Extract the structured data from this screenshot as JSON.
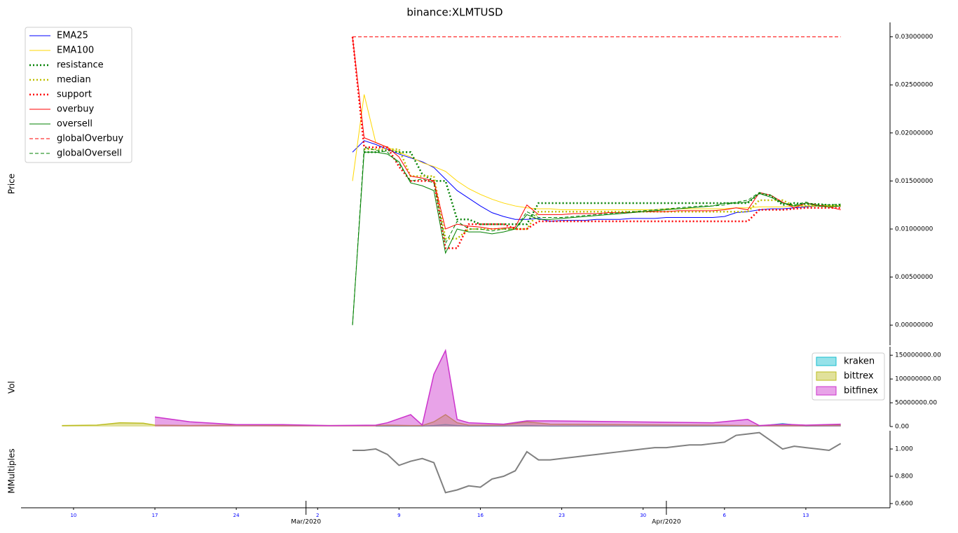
{
  "chart_data": [
    {
      "type": "line",
      "title": "binance:XLMTUSD",
      "ylabel": "Price",
      "legend": "upper left",
      "x": [
        "2020-03-05",
        "2020-03-06",
        "2020-03-07",
        "2020-03-08",
        "2020-03-09",
        "2020-03-10",
        "2020-03-11",
        "2020-03-12",
        "2020-03-13",
        "2020-03-14",
        "2020-03-15",
        "2020-03-16",
        "2020-03-17",
        "2020-03-18",
        "2020-03-19",
        "2020-03-20",
        "2020-03-21",
        "2020-03-22",
        "2020-03-23",
        "2020-03-24",
        "2020-03-25",
        "2020-03-26",
        "2020-03-27",
        "2020-03-28",
        "2020-03-29",
        "2020-03-30",
        "2020-03-31",
        "2020-04-01",
        "2020-04-02",
        "2020-04-03",
        "2020-04-04",
        "2020-04-05",
        "2020-04-06",
        "2020-04-07",
        "2020-04-08",
        "2020-04-09",
        "2020-04-10",
        "2020-04-11",
        "2020-04-12",
        "2020-04-13",
        "2020-04-14",
        "2020-04-15",
        "2020-04-16"
      ],
      "xlim": [
        "2020-02-05",
        "2020-04-20"
      ],
      "ylim": [
        -0.0021,
        0.0315
      ],
      "yticks": [
        {
          "value": 0,
          "label": "0.00000000"
        },
        {
          "value": 0.005,
          "label": "0.00500000"
        },
        {
          "value": 0.01,
          "label": "0.01000000"
        },
        {
          "value": 0.015,
          "label": "0.01500000"
        },
        {
          "value": 0.02,
          "label": "0.02000000"
        },
        {
          "value": 0.025,
          "label": "0.02500000"
        },
        {
          "value": 0.03,
          "label": "0.03000000"
        }
      ],
      "series": [
        {
          "name": "EMA25",
          "color": "#0000ff",
          "style": "solid",
          "values": [
            0.018,
            0.0192,
            0.0188,
            0.0183,
            0.0178,
            0.0174,
            0.017,
            0.0164,
            0.0152,
            0.014,
            0.0132,
            0.0124,
            0.0117,
            0.0113,
            0.011,
            0.011,
            0.0111,
            0.0108,
            0.0109,
            0.0109,
            0.0109,
            0.011,
            0.011,
            0.011,
            0.0111,
            0.0111,
            0.0111,
            0.0112,
            0.0112,
            0.0112,
            0.0112,
            0.0112,
            0.0113,
            0.0117,
            0.0118,
            0.012,
            0.0121,
            0.0121,
            0.0122,
            0.0123,
            0.0124,
            0.0124,
            0.0124
          ]
        },
        {
          "name": "EMA100",
          "color": "#ffd700",
          "style": "solid",
          "values": [
            0.015,
            0.024,
            0.019,
            0.0185,
            0.018,
            0.0175,
            0.0169,
            0.0165,
            0.016,
            0.015,
            0.0142,
            0.0136,
            0.0131,
            0.0127,
            0.0124,
            0.0122,
            0.0121,
            0.0121,
            0.012,
            0.012,
            0.012,
            0.012,
            0.012,
            0.012,
            0.012,
            0.012,
            0.012,
            0.0121,
            0.0121,
            0.0121,
            0.0121,
            0.0121,
            0.0121,
            0.0122,
            0.0122,
            0.0123,
            0.0123,
            0.0123,
            0.0124,
            0.0124,
            0.0124,
            0.0124,
            0.0124
          ]
        },
        {
          "name": "resistance",
          "color": "#008000",
          "style": "dotted",
          "values": [
            null,
            0.018,
            0.018,
            0.0182,
            0.018,
            0.018,
            0.0157,
            0.015,
            0.015,
            0.011,
            0.011,
            0.0105,
            0.0105,
            0.0105,
            0.0105,
            0.0105,
            0.0127,
            0.0127,
            0.0127,
            0.0127,
            0.0127,
            0.0127,
            0.0127,
            0.0127,
            0.0127,
            0.0127,
            0.0127,
            0.0127,
            0.0127,
            0.0127,
            0.0127,
            0.0127,
            0.0127,
            0.0127,
            0.0127,
            0.0137,
            0.0135,
            0.0125,
            0.0127,
            0.0126,
            0.0126,
            0.0125,
            0.0125
          ]
        },
        {
          "name": "median",
          "color": "#bfbf00",
          "style": "dotted",
          "values": [
            null,
            0.0183,
            0.0183,
            0.0183,
            0.0183,
            0.0155,
            0.0155,
            0.0155,
            0.009,
            0.009,
            0.01,
            0.01,
            0.01,
            0.01,
            0.01,
            0.01,
            0.0118,
            0.0118,
            0.0118,
            0.0118,
            0.0118,
            0.0118,
            0.0118,
            0.0118,
            0.0118,
            0.0118,
            0.0118,
            0.0118,
            0.0118,
            0.0118,
            0.0118,
            0.0118,
            0.0118,
            0.0118,
            0.0118,
            0.013,
            0.013,
            0.013,
            0.0124,
            0.0124,
            0.0124,
            0.0124,
            0.0124
          ]
        },
        {
          "name": "support",
          "color": "#ff0000",
          "style": "dotted",
          "values": [
            0.03,
            0.0185,
            0.0185,
            0.0185,
            0.0165,
            0.015,
            0.015,
            0.015,
            0.008,
            0.008,
            0.0105,
            0.0105,
            0.0105,
            0.0105,
            0.01,
            0.01,
            0.0108,
            0.0108,
            0.0108,
            0.0108,
            0.0108,
            0.0108,
            0.0108,
            0.0108,
            0.0108,
            0.0108,
            0.0108,
            0.0108,
            0.0108,
            0.0108,
            0.0108,
            0.0108,
            0.0108,
            0.0108,
            0.0108,
            0.012,
            0.012,
            0.012,
            0.0121,
            0.0122,
            0.0122,
            0.0122,
            0.0122
          ]
        },
        {
          "name": "overbuy",
          "color": "#ff0000",
          "style": "solid",
          "values": [
            0.03,
            0.0195,
            0.019,
            0.0185,
            0.0175,
            0.0155,
            0.0153,
            0.015,
            0.01,
            0.0105,
            0.0103,
            0.0102,
            0.01,
            0.0101,
            0.0102,
            0.0125,
            0.0115,
            0.0115,
            0.0115,
            0.0116,
            0.0116,
            0.0116,
            0.0117,
            0.0117,
            0.0117,
            0.0118,
            0.0118,
            0.0118,
            0.0119,
            0.0119,
            0.0119,
            0.0119,
            0.012,
            0.0122,
            0.012,
            0.0138,
            0.0135,
            0.0128,
            0.0122,
            0.0127,
            0.0125,
            0.0123,
            0.012
          ]
        },
        {
          "name": "oversell",
          "color": "#008000",
          "style": "solid",
          "values": [
            0.0,
            0.018,
            0.018,
            0.0178,
            0.017,
            0.0148,
            0.0145,
            0.014,
            0.0075,
            0.01,
            0.0097,
            0.0097,
            0.0095,
            0.0097,
            0.01,
            0.0115,
            0.011,
            0.011,
            0.0111,
            0.0112,
            0.0113,
            0.0114,
            0.0115,
            0.0116,
            0.0117,
            0.0118,
            0.0119,
            0.012,
            0.0121,
            0.0122,
            0.0123,
            0.0124,
            0.0127,
            0.0127,
            0.0128,
            0.0137,
            0.0133,
            0.0127,
            0.0124,
            0.0127,
            0.0124,
            0.0123,
            0.0124
          ]
        },
        {
          "name": "globalOverbuy",
          "color": "#ff0000",
          "style": "dashed",
          "values": [
            0.03,
            0.03,
            0.03,
            0.03,
            0.03,
            0.03,
            0.03,
            0.03,
            0.03,
            0.03,
            0.03,
            0.03,
            0.03,
            0.03,
            0.03,
            0.03,
            0.03,
            0.03,
            0.03,
            0.03,
            0.03,
            0.03,
            0.03,
            0.03,
            0.03,
            0.03,
            0.03,
            0.03,
            0.03,
            0.03,
            0.03,
            0.03,
            0.03,
            0.03,
            0.03,
            0.03,
            0.03,
            0.03,
            0.03,
            0.03,
            0.03,
            0.03,
            0.03
          ]
        },
        {
          "name": "globalOversell",
          "color": "#008000",
          "style": "dashed",
          "values": [
            0.0,
            0.0185,
            0.0182,
            0.018,
            0.0168,
            0.015,
            0.0152,
            0.0148,
            0.0085,
            0.0108,
            0.01,
            0.01,
            0.0098,
            0.01,
            0.01,
            0.0118,
            0.0112,
            0.0112,
            0.0112,
            0.0113,
            0.0114,
            0.0115,
            0.0116,
            0.0117,
            0.0118,
            0.0119,
            0.012,
            0.0121,
            0.0122,
            0.0123,
            0.0124,
            0.0124,
            0.0125,
            0.0128,
            0.013,
            0.0138,
            0.0135,
            0.0127,
            0.0125,
            0.0128,
            0.0125,
            0.0125,
            0.0126
          ]
        }
      ]
    },
    {
      "type": "area",
      "ylabel": "Vol",
      "legend": "upper right",
      "x": [
        "2020-02-09",
        "2020-02-12",
        "2020-02-14",
        "2020-02-16",
        "2020-02-17",
        "2020-02-20",
        "2020-02-24",
        "2020-02-28",
        "2020-03-03",
        "2020-03-07",
        "2020-03-08",
        "2020-03-10",
        "2020-03-11",
        "2020-03-12",
        "2020-03-13",
        "2020-03-14",
        "2020-03-15",
        "2020-03-18",
        "2020-03-20",
        "2020-03-22",
        "2020-04-05",
        "2020-04-08",
        "2020-04-09",
        "2020-04-11",
        "2020-04-13",
        "2020-04-16"
      ],
      "xlim": [
        "2020-02-05",
        "2020-04-20"
      ],
      "ylim": [
        0,
        165000000
      ],
      "yticks": [
        {
          "value": 0,
          "label": "0.00"
        },
        {
          "value": 50000000,
          "label": "50000000.00"
        },
        {
          "value": 100000000,
          "label": "100000000.00"
        },
        {
          "value": 150000000,
          "label": "150000000.00"
        }
      ],
      "series": [
        {
          "name": "kraken",
          "color": "#17becf",
          "values": [
            null,
            null,
            null,
            null,
            null,
            null,
            null,
            null,
            null,
            1000000,
            1000000,
            1000000,
            1000000,
            2000000,
            4000000,
            2000000,
            1000000,
            1000000,
            2000000,
            1000000,
            1000000,
            1000000,
            1000000,
            6000000,
            1000000,
            2000000
          ]
        },
        {
          "name": "bittrex",
          "color": "#bcbd22",
          "values": [
            2000000,
            3000000,
            8000000,
            7000000,
            3000000,
            2000000,
            3000000,
            2000000,
            2000000,
            2000000,
            3000000,
            2000000,
            2000000,
            10000000,
            25000000,
            8000000,
            3000000,
            3000000,
            10000000,
            5000000,
            3000000,
            2000000,
            2000000,
            2000000,
            2000000,
            3000000
          ]
        },
        {
          "name": "bitfinex",
          "color": "#cc33cc",
          "values": [
            null,
            null,
            null,
            null,
            20000000,
            10000000,
            4000000,
            4000000,
            2000000,
            3000000,
            8000000,
            25000000,
            3000000,
            110000000,
            160000000,
            15000000,
            8000000,
            5000000,
            12000000,
            12000000,
            8000000,
            15000000,
            2000000,
            5000000,
            3000000,
            5000000
          ]
        }
      ]
    },
    {
      "type": "line",
      "ylabel": "MMultiples",
      "x": [
        "2020-03-05",
        "2020-03-06",
        "2020-03-07",
        "2020-03-08",
        "2020-03-09",
        "2020-03-10",
        "2020-03-11",
        "2020-03-12",
        "2020-03-13",
        "2020-03-14",
        "2020-03-15",
        "2020-03-16",
        "2020-03-17",
        "2020-03-18",
        "2020-03-19",
        "2020-03-20",
        "2020-03-21",
        "2020-03-22",
        "2020-03-23",
        "2020-03-24",
        "2020-03-25",
        "2020-03-26",
        "2020-03-27",
        "2020-03-28",
        "2020-03-29",
        "2020-03-30",
        "2020-03-31",
        "2020-04-01",
        "2020-04-02",
        "2020-04-03",
        "2020-04-04",
        "2020-04-05",
        "2020-04-06",
        "2020-04-07",
        "2020-04-08",
        "2020-04-09",
        "2020-04-10",
        "2020-04-11",
        "2020-04-12",
        "2020-04-13",
        "2020-04-14",
        "2020-04-15",
        "2020-04-16"
      ],
      "xlim": [
        "2020-02-05",
        "2020-04-20"
      ],
      "ylim": [
        0.569,
        1.108
      ],
      "yticks": [
        {
          "value": 0.6,
          "label": "0.600"
        },
        {
          "value": 0.8,
          "label": "0.800"
        },
        {
          "value": 1.0,
          "label": "1.000"
        }
      ],
      "xticks": [
        {
          "value": "2020-02-10",
          "label": "10"
        },
        {
          "value": "2020-02-17",
          "label": "17"
        },
        {
          "value": "2020-02-24",
          "label": "24"
        },
        {
          "value": "2020-03-02",
          "label": "2"
        },
        {
          "value": "2020-03-09",
          "label": "9"
        },
        {
          "value": "2020-03-16",
          "label": "16"
        },
        {
          "value": "2020-03-23",
          "label": "23"
        },
        {
          "value": "2020-03-30",
          "label": "30"
        },
        {
          "value": "2020-04-06",
          "label": "6"
        },
        {
          "value": "2020-04-13",
          "label": "13"
        }
      ],
      "xmajorticks": [
        {
          "value": "2020-03-01",
          "label": "Mar/2020"
        },
        {
          "value": "2020-04-01",
          "label": "Apr/2020"
        }
      ],
      "series": [
        {
          "color": "#808080",
          "style": "solid",
          "values": [
            0.99,
            0.99,
            1.0,
            0.96,
            0.88,
            0.91,
            0.93,
            0.9,
            0.68,
            0.7,
            0.73,
            0.72,
            0.78,
            0.8,
            0.84,
            0.98,
            0.92,
            0.92,
            0.93,
            0.94,
            0.95,
            0.96,
            0.97,
            0.98,
            0.99,
            1.0,
            1.01,
            1.01,
            1.02,
            1.03,
            1.03,
            1.04,
            1.05,
            1.1,
            1.11,
            1.12,
            1.06,
            1.0,
            1.02,
            1.01,
            1.0,
            0.99,
            1.04
          ]
        }
      ]
    }
  ]
}
